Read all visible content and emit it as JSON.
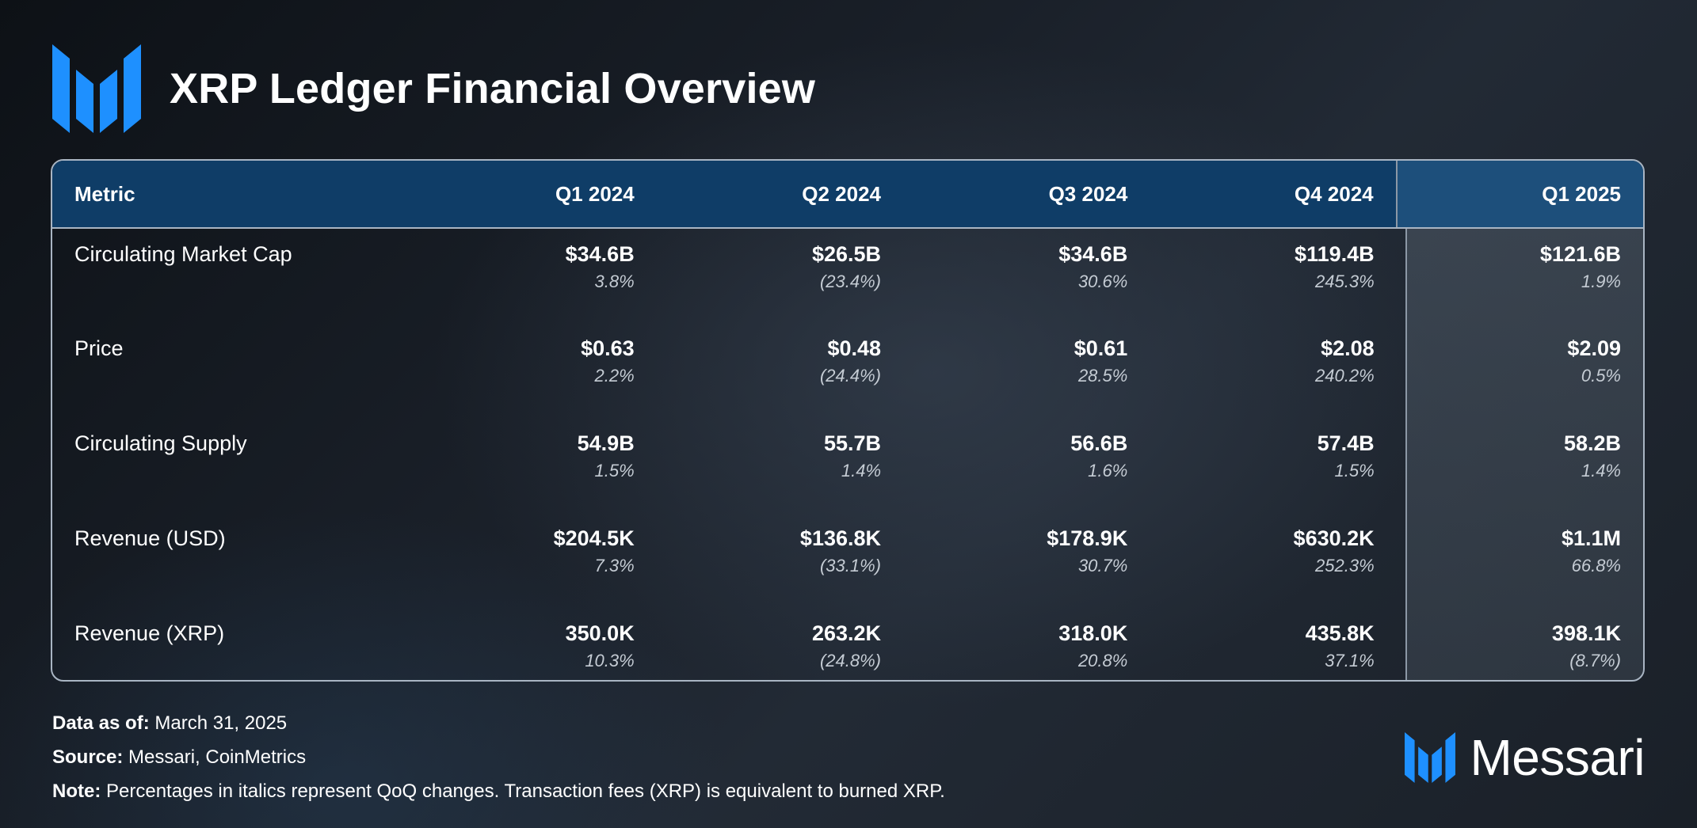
{
  "title": "XRP Ledger Financial Overview",
  "brand": {
    "name": "Messari",
    "accent": "#1e90ff"
  },
  "colors": {
    "header_bg": "#0f3d67",
    "highlight_header_bg": "#1d4f7b",
    "border": "#a9b5c3"
  },
  "chart_data": {
    "type": "table",
    "columns": [
      "Metric",
      "Q1 2024",
      "Q2 2024",
      "Q3 2024",
      "Q4 2024",
      "Q1 2025"
    ],
    "highlighted_column": "Q1 2025",
    "rows": [
      {
        "metric": "Circulating Market Cap",
        "values": [
          "$34.6B",
          "$26.5B",
          "$34.6B",
          "$119.4B",
          "$121.6B"
        ],
        "changes": [
          "3.8%",
          "(23.4%)",
          "30.6%",
          "245.3%",
          "1.9%"
        ]
      },
      {
        "metric": "Price",
        "values": [
          "$0.63",
          "$0.48",
          "$0.61",
          "$2.08",
          "$2.09"
        ],
        "changes": [
          "2.2%",
          "(24.4%)",
          "28.5%",
          "240.2%",
          "0.5%"
        ]
      },
      {
        "metric": "Circulating Supply",
        "values": [
          "54.9B",
          "55.7B",
          "56.6B",
          "57.4B",
          "58.2B"
        ],
        "changes": [
          "1.5%",
          "1.4%",
          "1.6%",
          "1.5%",
          "1.4%"
        ]
      },
      {
        "metric": "Revenue (USD)",
        "values": [
          "$204.5K",
          "$136.8K",
          "$178.9K",
          "$630.2K",
          "$1.1M"
        ],
        "changes": [
          "7.3%",
          "(33.1%)",
          "30.7%",
          "252.3%",
          "66.8%"
        ]
      },
      {
        "metric": "Revenue (XRP)",
        "values": [
          "350.0K",
          "263.2K",
          "318.0K",
          "435.8K",
          "398.1K"
        ],
        "changes": [
          "10.3%",
          "(24.8%)",
          "20.8%",
          "37.1%",
          "(8.7%)"
        ]
      }
    ]
  },
  "footer": {
    "data_as_of_label": "Data as of:",
    "data_as_of_value": "March 31, 2025",
    "source_label": "Source:",
    "source_value": "Messari, CoinMetrics",
    "note_label": "Note:",
    "note_value": "Percentages in italics represent QoQ changes. Transaction fees (XRP) is equivalent to burned XRP."
  }
}
